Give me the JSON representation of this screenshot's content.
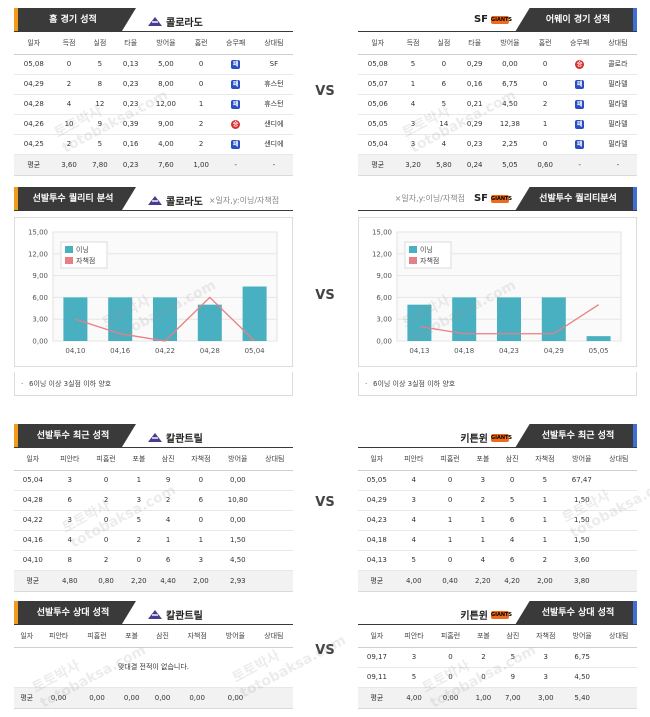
{
  "colors": {
    "header_bg": "#3a3a3a",
    "left_accent": "#f29a1a",
    "right_accent": "#3f6fd6",
    "bar": "#49b0c1",
    "line": "#e87e86",
    "loss_badge": "#2a4fc2",
    "win_badge": "#d92e2e"
  },
  "vs_label": "VS",
  "watermark": {
    "line1": "토토박사",
    "line2": "totobaksa.com"
  },
  "sections": {
    "recent_home": {
      "tab": "홈 경기 성적",
      "team": "콜로라도",
      "logo": "rockies-logo",
      "columns": [
        "일자",
        "득점",
        "실점",
        "타율",
        "방어율",
        "홈런",
        "승무패",
        "상대팀"
      ],
      "rows": [
        [
          "05,08",
          "0",
          "5",
          "0,13",
          "5,00",
          "0",
          "패",
          "SF"
        ],
        [
          "04,29",
          "2",
          "8",
          "0,23",
          "8,00",
          "0",
          "패",
          "휴스턴"
        ],
        [
          "04,28",
          "4",
          "12",
          "0,23",
          "12,00",
          "1",
          "패",
          "휴스턴"
        ],
        [
          "04,26",
          "10",
          "9",
          "0,39",
          "9,00",
          "2",
          "승",
          "샌디에"
        ],
        [
          "04,25",
          "2",
          "5",
          "0,16",
          "4,00",
          "2",
          "패",
          "샌디에"
        ]
      ],
      "avg": [
        "평균",
        "3,60",
        "7,80",
        "0,23",
        "7,60",
        "1,00",
        "-",
        "-"
      ]
    },
    "recent_away": {
      "tab": "어웨이 경기 성적",
      "team": "SF",
      "logo": "giants-logo",
      "logo_text": "GIANTS",
      "columns": [
        "일자",
        "득점",
        "실점",
        "타율",
        "방어율",
        "홈런",
        "승무패",
        "상대팀"
      ],
      "rows": [
        [
          "05,08",
          "5",
          "0",
          "0,29",
          "0,00",
          "0",
          "승",
          "콜로라"
        ],
        [
          "05,07",
          "1",
          "6",
          "0,16",
          "6,75",
          "0",
          "패",
          "필라델"
        ],
        [
          "05,06",
          "4",
          "5",
          "0,21",
          "4,50",
          "2",
          "패",
          "필라델"
        ],
        [
          "05,05",
          "3",
          "14",
          "0,29",
          "12,38",
          "1",
          "패",
          "필라델"
        ],
        [
          "05,04",
          "3",
          "4",
          "0,23",
          "2,25",
          "0",
          "패",
          "필라델"
        ]
      ],
      "avg": [
        "평균",
        "3,20",
        "5,80",
        "0,24",
        "5,05",
        "0,60",
        "-",
        "-"
      ]
    },
    "quality_left": {
      "tab": "선발투수 퀄리티 분석",
      "team": "콜로라도",
      "axis_note": "×일자,y:이닝/자책점",
      "note": "6이닝 이상 3실점 이하 양호"
    },
    "quality_right": {
      "tab": "선발투수 퀄리티분석",
      "team": "SF",
      "logo_text": "GIANTS",
      "axis_note": "×일자,y:이닝/자책점",
      "note": "6이닝 이상 3실점 이하 양호"
    },
    "pitcher_recent_left": {
      "tab": "선발투수 최근 성적",
      "team": "칼콴트릴",
      "columns": [
        "일자",
        "피안타",
        "피홈런",
        "포볼",
        "삼진",
        "자책점",
        "방어율",
        "상대팀"
      ],
      "rows": [
        [
          "05,04",
          "3",
          "0",
          "1",
          "9",
          "0",
          "0,00",
          ""
        ],
        [
          "04,28",
          "6",
          "2",
          "3",
          "2",
          "6",
          "10,80",
          ""
        ],
        [
          "04,22",
          "3",
          "0",
          "5",
          "4",
          "0",
          "0,00",
          ""
        ],
        [
          "04,16",
          "4",
          "0",
          "2",
          "1",
          "1",
          "1,50",
          ""
        ],
        [
          "04,10",
          "8",
          "2",
          "0",
          "6",
          "3",
          "4,50",
          ""
        ]
      ],
      "avg": [
        "평균",
        "4,80",
        "0,80",
        "2,20",
        "4,40",
        "2,00",
        "2,93",
        ""
      ]
    },
    "pitcher_recent_right": {
      "tab": "선발투수 최근 성적",
      "team": "키튼윈",
      "logo_text": "GIANTS",
      "columns": [
        "일자",
        "피안타",
        "피홈런",
        "포볼",
        "삼진",
        "자책점",
        "방어율",
        "상대팀"
      ],
      "rows": [
        [
          "05,05",
          "4",
          "0",
          "3",
          "0",
          "5",
          "67,47",
          ""
        ],
        [
          "04,29",
          "3",
          "0",
          "2",
          "5",
          "1",
          "1,50",
          ""
        ],
        [
          "04,23",
          "4",
          "1",
          "1",
          "6",
          "1",
          "1,50",
          ""
        ],
        [
          "04,18",
          "4",
          "1",
          "1",
          "4",
          "1",
          "1,50",
          ""
        ],
        [
          "04,13",
          "5",
          "0",
          "4",
          "6",
          "2",
          "3,60",
          ""
        ]
      ],
      "avg": [
        "평균",
        "4,00",
        "0,40",
        "2,20",
        "4,20",
        "2,00",
        "3,80",
        ""
      ]
    },
    "pitcher_vs_left": {
      "tab": "선발투수 상대 성적",
      "team": "칼콴트릴",
      "columns": [
        "일자",
        "피안타",
        "피홈런",
        "포볼",
        "삼진",
        "자책점",
        "방어율",
        "상대팀"
      ],
      "empty_message": "맞대결 전적이 없습니다.",
      "avg": [
        "평균",
        "0,00",
        "0,00",
        "0,00",
        "0,00",
        "0,00",
        "0,00",
        ""
      ]
    },
    "pitcher_vs_right": {
      "tab": "선발투수 상대 성적",
      "team": "키튼윈",
      "logo_text": "GIANTS",
      "columns": [
        "일자",
        "피안타",
        "피홈런",
        "포볼",
        "삼진",
        "자책점",
        "방어율",
        "상대팀"
      ],
      "rows": [
        [
          "09,17",
          "3",
          "0",
          "2",
          "5",
          "3",
          "6,75",
          ""
        ],
        [
          "09,11",
          "5",
          "0",
          "0",
          "9",
          "3",
          "4,50",
          ""
        ]
      ],
      "avg": [
        "평균",
        "4,00",
        "0,00",
        "1,00",
        "7,00",
        "3,00",
        "5,40",
        ""
      ]
    }
  },
  "chart_data": [
    {
      "type": "bar",
      "categories": [
        "04,10",
        "04,16",
        "04,22",
        "04,28",
        "05,04"
      ],
      "series": [
        {
          "name": "이닝",
          "type": "bar",
          "values": [
            6,
            6,
            6,
            5,
            7.5
          ]
        },
        {
          "name": "자책점",
          "type": "line",
          "values": [
            3,
            1,
            0,
            6,
            0
          ]
        }
      ],
      "y_ticks": [
        "0,00",
        "3,00",
        "6,00",
        "9,00",
        "12,00",
        "15,00"
      ],
      "ylim": [
        0,
        15
      ],
      "legend": "top-left",
      "grid": true
    },
    {
      "type": "bar",
      "categories": [
        "04,13",
        "04,18",
        "04,23",
        "04,29",
        "05,05"
      ],
      "series": [
        {
          "name": "이닝",
          "type": "bar",
          "values": [
            5,
            6,
            6,
            6,
            0.67
          ]
        },
        {
          "name": "자책점",
          "type": "line",
          "values": [
            2,
            1,
            1,
            1,
            5
          ]
        }
      ],
      "y_ticks": [
        "0,00",
        "3,00",
        "6,00",
        "9,00",
        "12,00",
        "15,00"
      ],
      "ylim": [
        0,
        15
      ],
      "legend": "top-left",
      "grid": true
    }
  ]
}
